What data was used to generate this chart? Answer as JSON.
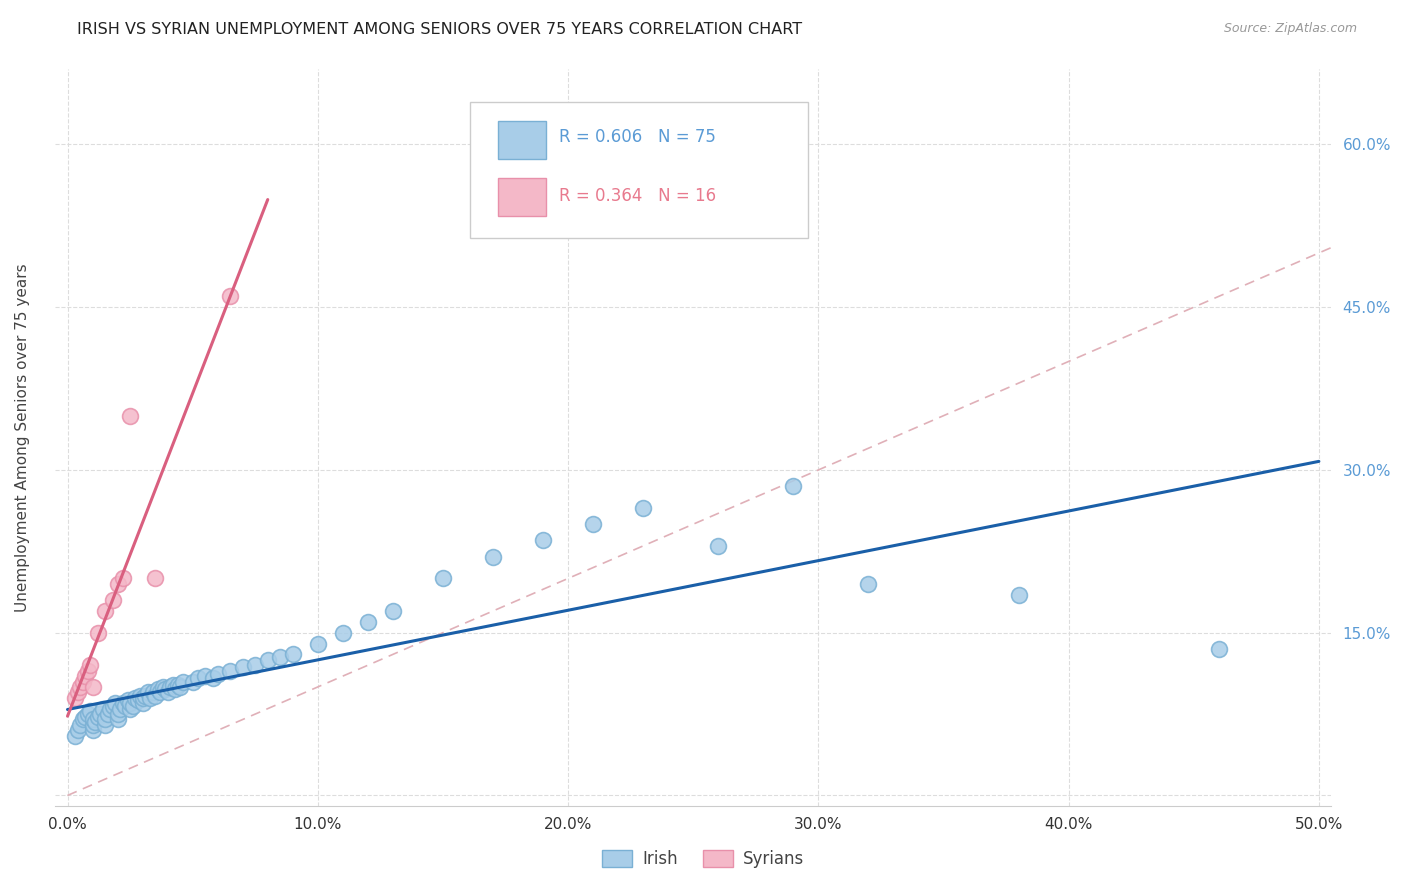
{
  "title": "IRISH VS SYRIAN UNEMPLOYMENT AMONG SENIORS OVER 75 YEARS CORRELATION CHART",
  "source": "Source: ZipAtlas.com",
  "ylabel_label": "Unemployment Among Seniors over 75 years",
  "xlim": [
    -0.005,
    0.505
  ],
  "ylim": [
    -0.01,
    0.67
  ],
  "xticks": [
    0.0,
    0.1,
    0.2,
    0.3,
    0.4,
    0.5
  ],
  "yticks": [
    0.0,
    0.15,
    0.3,
    0.45,
    0.6
  ],
  "xtick_labels": [
    "0.0%",
    "10.0%",
    "20.0%",
    "30.0%",
    "40.0%",
    "50.0%"
  ],
  "ytick_labels_left": [
    "",
    "",
    "",
    "",
    ""
  ],
  "ytick_labels_right": [
    "",
    "15.0%",
    "30.0%",
    "45.0%",
    "60.0%"
  ],
  "irish_R": "0.606",
  "irish_N": "75",
  "syrian_R": "0.364",
  "syrian_N": "16",
  "irish_color": "#a8cde8",
  "syrian_color": "#f4b8c8",
  "irish_line_color": "#1a5fa8",
  "syrian_line_color": "#d95f7f",
  "diagonal_color": "#e0b0b8",
  "background_color": "#ffffff",
  "grid_color": "#dddddd",
  "irish_x": [
    0.003,
    0.004,
    0.005,
    0.006,
    0.007,
    0.008,
    0.009,
    0.01,
    0.01,
    0.01,
    0.011,
    0.012,
    0.013,
    0.014,
    0.015,
    0.015,
    0.016,
    0.017,
    0.018,
    0.019,
    0.02,
    0.02,
    0.021,
    0.022,
    0.023,
    0.024,
    0.025,
    0.025,
    0.026,
    0.027,
    0.028,
    0.029,
    0.03,
    0.03,
    0.031,
    0.032,
    0.033,
    0.034,
    0.035,
    0.036,
    0.037,
    0.038,
    0.039,
    0.04,
    0.041,
    0.042,
    0.043,
    0.044,
    0.045,
    0.046,
    0.05,
    0.052,
    0.055,
    0.058,
    0.06,
    0.065,
    0.07,
    0.075,
    0.08,
    0.085,
    0.09,
    0.1,
    0.11,
    0.12,
    0.13,
    0.15,
    0.17,
    0.19,
    0.21,
    0.23,
    0.26,
    0.29,
    0.32,
    0.38,
    0.46
  ],
  "irish_y": [
    0.055,
    0.06,
    0.065,
    0.07,
    0.072,
    0.075,
    0.078,
    0.06,
    0.065,
    0.07,
    0.068,
    0.072,
    0.075,
    0.08,
    0.065,
    0.07,
    0.075,
    0.08,
    0.082,
    0.085,
    0.07,
    0.075,
    0.08,
    0.085,
    0.082,
    0.088,
    0.08,
    0.085,
    0.082,
    0.09,
    0.088,
    0.092,
    0.085,
    0.09,
    0.092,
    0.095,
    0.09,
    0.095,
    0.092,
    0.098,
    0.095,
    0.1,
    0.098,
    0.095,
    0.1,
    0.102,
    0.098,
    0.102,
    0.1,
    0.105,
    0.105,
    0.108,
    0.11,
    0.108,
    0.112,
    0.115,
    0.118,
    0.12,
    0.125,
    0.128,
    0.13,
    0.14,
    0.15,
    0.16,
    0.17,
    0.2,
    0.22,
    0.235,
    0.25,
    0.265,
    0.23,
    0.285,
    0.195,
    0.185,
    0.135
  ],
  "syrian_x": [
    0.003,
    0.004,
    0.005,
    0.006,
    0.007,
    0.008,
    0.009,
    0.01,
    0.012,
    0.015,
    0.018,
    0.02,
    0.022,
    0.025,
    0.035,
    0.065
  ],
  "syrian_y": [
    0.09,
    0.095,
    0.1,
    0.105,
    0.11,
    0.115,
    0.12,
    0.1,
    0.15,
    0.17,
    0.18,
    0.195,
    0.2,
    0.35,
    0.2,
    0.46
  ]
}
